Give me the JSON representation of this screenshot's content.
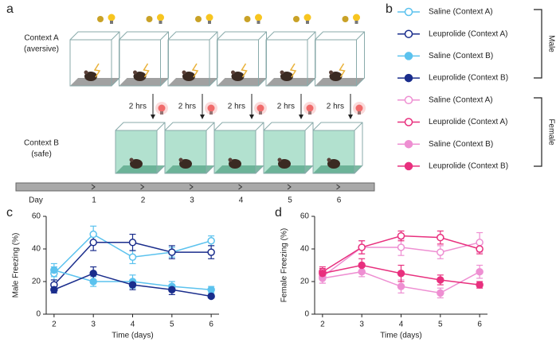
{
  "panels": [
    "a",
    "b",
    "c",
    "d"
  ],
  "diagram": {
    "contexts": [
      {
        "name": "Context A",
        "note": "(aversive)"
      },
      {
        "name": "Context B",
        "note": "(safe)"
      }
    ],
    "intervals": [
      "2 hrs",
      "2 hrs",
      "2 hrs",
      "2 hrs",
      "2 hrs"
    ],
    "timeline": {
      "label": "Day",
      "days": [
        1,
        2,
        3,
        4,
        5,
        6
      ]
    }
  },
  "legend_groups": [
    "Male",
    "Female"
  ],
  "chart_data": [
    {
      "type": "line",
      "x_label": "Time (days)",
      "y_label": "Male Freezing (%)",
      "x": [
        2,
        3,
        4,
        5,
        6
      ],
      "xlim": [
        1.8,
        6.2
      ],
      "xticks": [
        2,
        3,
        4,
        5,
        6
      ],
      "ylim": [
        0,
        60
      ],
      "yticks": [
        0,
        20,
        40,
        60
      ],
      "series": [
        {
          "name": "Saline (Context A)",
          "color": "#5bc2ee",
          "marker": "open",
          "values": [
            25,
            49,
            35,
            38,
            45
          ],
          "errors": [
            4,
            5,
            4,
            3,
            3
          ]
        },
        {
          "name": "Leuprolide (Context A)",
          "color": "#1a2d8c",
          "marker": "open",
          "values": [
            18,
            44,
            44,
            38,
            38
          ],
          "errors": [
            3,
            5,
            5,
            4,
            4
          ]
        },
        {
          "name": "Saline (Context B)",
          "color": "#5bc2ee",
          "marker": "filled",
          "values": [
            27,
            20,
            20,
            17,
            15
          ],
          "errors": [
            4,
            3,
            4,
            3,
            2
          ]
        },
        {
          "name": "Leuprolide (Context B)",
          "color": "#1a2d8c",
          "marker": "filled",
          "values": [
            15,
            25,
            18,
            15,
            11
          ],
          "errors": [
            2,
            4,
            3,
            3,
            1
          ]
        }
      ]
    },
    {
      "type": "line",
      "x_label": "Time (days)",
      "y_label": "Female Freezing (%)",
      "x": [
        2,
        3,
        4,
        5,
        6
      ],
      "xlim": [
        1.8,
        6.2
      ],
      "xticks": [
        2,
        3,
        4,
        5,
        6
      ],
      "ylim": [
        0,
        60
      ],
      "yticks": [
        0,
        20,
        40,
        60
      ],
      "series": [
        {
          "name": "Saline (Context A)",
          "color": "#ee8fd2",
          "marker": "open",
          "values": [
            23,
            41,
            41,
            38,
            44
          ],
          "errors": [
            4,
            4,
            5,
            4,
            6
          ]
        },
        {
          "name": "Leuprolide (Context A)",
          "color": "#e8307e",
          "marker": "open",
          "values": [
            26,
            41,
            48,
            47,
            40
          ],
          "errors": [
            3,
            4,
            3,
            4,
            3
          ]
        },
        {
          "name": "Saline (Context B)",
          "color": "#ee8fd2",
          "marker": "filled",
          "values": [
            22,
            26,
            17,
            13,
            26
          ],
          "errors": [
            3,
            3,
            4,
            3,
            4
          ]
        },
        {
          "name": "Leuprolide (Context B)",
          "color": "#e8307e",
          "marker": "filled",
          "values": [
            25,
            30,
            25,
            21,
            18
          ],
          "errors": [
            3,
            4,
            5,
            3,
            2
          ]
        }
      ]
    }
  ]
}
